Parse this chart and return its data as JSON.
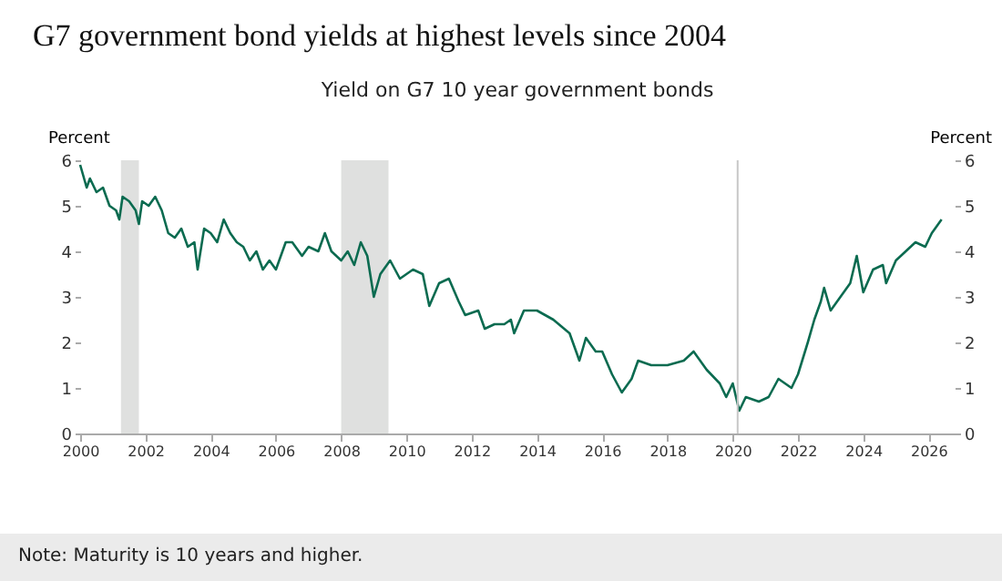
{
  "chart_data": {
    "type": "line",
    "title": "G7 government bond yields at highest levels since 2004",
    "subtitle": "Yield on G7 10 year government bonds",
    "ylabel": "Percent",
    "y2label": "Percent",
    "annotations": [
      "Note: Maturity is 10 years and higher."
    ],
    "x": [
      2000.0,
      2000.2,
      2000.3,
      2000.5,
      2000.7,
      2000.9,
      2001.1,
      2001.2,
      2001.3,
      2001.5,
      2001.7,
      2001.8,
      2001.9,
      2002.1,
      2002.3,
      2002.5,
      2002.7,
      2002.9,
      2003.1,
      2003.3,
      2003.5,
      2003.6,
      2003.8,
      2004.0,
      2004.2,
      2004.4,
      2004.6,
      2004.8,
      2005.0,
      2005.2,
      2005.4,
      2005.6,
      2005.8,
      2006.0,
      2006.3,
      2006.5,
      2006.8,
      2007.0,
      2007.3,
      2007.5,
      2007.7,
      2008.0,
      2008.2,
      2008.4,
      2008.6,
      2008.8,
      2009.0,
      2009.2,
      2009.5,
      2009.8,
      2010.2,
      2010.5,
      2010.7,
      2011.0,
      2011.3,
      2011.6,
      2011.8,
      2012.2,
      2012.4,
      2012.7,
      2013.0,
      2013.2,
      2013.3,
      2013.6,
      2014.0,
      2014.5,
      2015.0,
      2015.3,
      2015.5,
      2015.8,
      2016.0,
      2016.3,
      2016.6,
      2016.9,
      2017.1,
      2017.5,
      2018.0,
      2018.5,
      2018.8,
      2019.2,
      2019.6,
      2019.8,
      2020.0,
      2020.2,
      2020.4,
      2020.8,
      2021.1,
      2021.4,
      2021.8,
      2022.0,
      2022.3,
      2022.5,
      2022.7,
      2022.8,
      2023.0,
      2023.3,
      2023.6,
      2023.8,
      2024.0,
      2024.3,
      2024.6,
      2024.7,
      2025.0,
      2025.3,
      2025.6,
      2025.9,
      2026.1,
      2026.4
    ],
    "series": [
      {
        "color": "#0b6b50",
        "values": [
          5.9,
          5.4,
          5.6,
          5.3,
          5.4,
          5.0,
          4.9,
          4.7,
          5.2,
          5.1,
          4.9,
          4.6,
          5.1,
          5.0,
          5.2,
          4.9,
          4.4,
          4.3,
          4.5,
          4.1,
          4.2,
          3.6,
          4.5,
          4.4,
          4.2,
          4.7,
          4.4,
          4.2,
          4.1,
          3.8,
          4.0,
          3.6,
          3.8,
          3.6,
          4.2,
          4.2,
          3.9,
          4.1,
          4.0,
          4.4,
          4.0,
          3.8,
          4.0,
          3.7,
          4.2,
          3.9,
          3.0,
          3.5,
          3.8,
          3.4,
          3.6,
          3.5,
          2.8,
          3.3,
          3.4,
          2.9,
          2.6,
          2.7,
          2.3,
          2.4,
          2.4,
          2.5,
          2.2,
          2.7,
          2.7,
          2.5,
          2.2,
          1.6,
          2.1,
          1.8,
          1.8,
          1.3,
          0.9,
          1.2,
          1.6,
          1.5,
          1.5,
          1.6,
          1.8,
          1.4,
          1.1,
          0.8,
          1.1,
          0.5,
          0.8,
          0.7,
          0.8,
          1.2,
          1.0,
          1.3,
          2.0,
          2.5,
          2.9,
          3.2,
          2.7,
          3.0,
          3.3,
          3.9,
          3.1,
          3.6,
          3.7,
          3.3,
          3.8,
          4.0,
          4.2,
          4.1,
          4.4,
          4.7
        ]
      }
    ],
    "xlim": [
      2000,
      2026.8
    ],
    "xticks": [
      2000,
      2002,
      2004,
      2006,
      2008,
      2010,
      2012,
      2014,
      2016,
      2018,
      2020,
      2022,
      2024,
      2026
    ],
    "ylim": [
      0,
      6
    ],
    "yticks": [
      0,
      1,
      2,
      3,
      4,
      5,
      6
    ],
    "y2lim": [
      0,
      6
    ],
    "y2ticks": [
      0,
      1,
      2,
      3,
      4,
      5,
      6
    ],
    "bands": [
      {
        "axis": "x",
        "from": 2001.25,
        "to": 2001.8,
        "color": "#dfe0df"
      },
      {
        "axis": "x",
        "from": 2008.0,
        "to": 2009.45,
        "color": "#dfe0df"
      }
    ],
    "ref_lines": [
      {
        "axis": "x",
        "value": 2020.15,
        "color": "#c8c8c8"
      }
    ],
    "grid": false,
    "legend": false,
    "marker": "none",
    "line_style": "solid"
  }
}
